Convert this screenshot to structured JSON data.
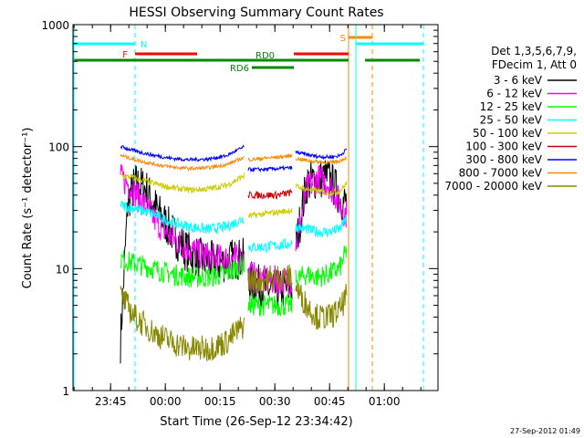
{
  "chart_data": {
    "type": "line",
    "title": "HESSI Observing Summary Count Rates",
    "xlabel": "Start Time (26-Sep-12 23:34:42)",
    "ylabel": "Count Rate (s⁻¹ detector⁻¹)",
    "yscale": "log",
    "ylim": [
      1,
      1000
    ],
    "xlim_minutes_after_start": [
      0,
      100
    ],
    "x_tick_labels": [
      "23:45",
      "00:00",
      "00:15",
      "00:30",
      "00:45",
      "01:00"
    ],
    "x_tick_minutes": [
      10.3,
      25.3,
      40.3,
      55.3,
      70.3,
      85.3
    ],
    "y_tick_labels": [
      "1",
      "10",
      "100",
      "1000"
    ],
    "y_tick_values": [
      1,
      10,
      100,
      1000
    ],
    "legend_header": [
      "Det 1,3,5,6,7,9,",
      "FDecim 1, Att 0"
    ],
    "legend_position": "right",
    "timestamp": "27-Sep-2012 01:49",
    "segments": [
      [
        13,
        47.5
      ],
      [
        48,
        60.5
      ],
      [
        61,
        75.5
      ]
    ],
    "series": [
      {
        "name": "3 - 6 keV",
        "color": "#000000",
        "points": [
          [
            13,
            2.5
          ],
          [
            15,
            35
          ],
          [
            17,
            50
          ],
          [
            20,
            45
          ],
          [
            23,
            30
          ],
          [
            27,
            20
          ],
          [
            31,
            14
          ],
          [
            35,
            12
          ],
          [
            40,
            11
          ],
          [
            44,
            12
          ],
          [
            47,
            12
          ],
          [
            48,
            8
          ],
          [
            52,
            7
          ],
          [
            56,
            6.5
          ],
          [
            60,
            7
          ],
          [
            61,
            15
          ],
          [
            64,
            50
          ],
          [
            67,
            55
          ],
          [
            70,
            55
          ],
          [
            72,
            45
          ],
          [
            74,
            35
          ],
          [
            75,
            35
          ]
        ]
      },
      {
        "name": "6 - 12 keV",
        "color": "#ff00ff",
        "points": [
          [
            13,
            55
          ],
          [
            15,
            50
          ],
          [
            17,
            42
          ],
          [
            20,
            32
          ],
          [
            23,
            24
          ],
          [
            27,
            18
          ],
          [
            31,
            15
          ],
          [
            35,
            13
          ],
          [
            40,
            12
          ],
          [
            44,
            12
          ],
          [
            47,
            12
          ],
          [
            48,
            9
          ],
          [
            52,
            8
          ],
          [
            56,
            8
          ],
          [
            60,
            8
          ],
          [
            61,
            15
          ],
          [
            64,
            45
          ],
          [
            67,
            55
          ],
          [
            70,
            50
          ],
          [
            72,
            40
          ],
          [
            74,
            30
          ],
          [
            75,
            28
          ]
        ]
      },
      {
        "name": "12 - 25 keV",
        "color": "#00ff00",
        "points": [
          [
            13,
            12
          ],
          [
            17,
            11
          ],
          [
            22,
            10
          ],
          [
            27,
            9
          ],
          [
            32,
            8.5
          ],
          [
            37,
            8.5
          ],
          [
            42,
            9
          ],
          [
            47,
            11
          ],
          [
            48,
            5
          ],
          [
            52,
            5
          ],
          [
            56,
            5
          ],
          [
            60,
            5
          ],
          [
            61,
            8
          ],
          [
            64,
            9
          ],
          [
            67,
            8.5
          ],
          [
            70,
            9
          ],
          [
            73,
            10
          ],
          [
            75,
            14
          ]
        ]
      },
      {
        "name": "25 - 50 keV",
        "color": "#00ffff",
        "points": [
          [
            13,
            33
          ],
          [
            17,
            31
          ],
          [
            22,
            28
          ],
          [
            27,
            24
          ],
          [
            32,
            22
          ],
          [
            37,
            21
          ],
          [
            42,
            22
          ],
          [
            47,
            26
          ],
          [
            48,
            15
          ],
          [
            52,
            15
          ],
          [
            56,
            15.5
          ],
          [
            60,
            16
          ],
          [
            61,
            22
          ],
          [
            64,
            21
          ],
          [
            67,
            20
          ],
          [
            70,
            20
          ],
          [
            73,
            21
          ],
          [
            75,
            26
          ]
        ]
      },
      {
        "name": "50 - 100 keV",
        "color": "#cccc00",
        "points": [
          [
            13,
            58
          ],
          [
            17,
            55
          ],
          [
            22,
            50
          ],
          [
            27,
            46
          ],
          [
            32,
            44
          ],
          [
            37,
            45
          ],
          [
            42,
            48
          ],
          [
            47,
            58
          ],
          [
            48,
            27
          ],
          [
            52,
            28
          ],
          [
            56,
            29
          ],
          [
            60,
            30
          ],
          [
            61,
            47
          ],
          [
            64,
            45
          ],
          [
            67,
            43
          ],
          [
            70,
            42
          ],
          [
            73,
            43
          ],
          [
            75,
            50
          ]
        ]
      },
      {
        "name": "100 - 300 keV",
        "color": "#cc0000",
        "points": [
          [
            48,
            40
          ],
          [
            52,
            40
          ],
          [
            56,
            40
          ],
          [
            60,
            42
          ]
        ]
      },
      {
        "name": "300 - 800 keV",
        "color": "#0000ff",
        "points": [
          [
            13,
            100
          ],
          [
            17,
            92
          ],
          [
            22,
            85
          ],
          [
            27,
            80
          ],
          [
            32,
            78
          ],
          [
            37,
            79
          ],
          [
            42,
            84
          ],
          [
            47,
            100
          ],
          [
            48,
            65
          ],
          [
            52,
            65
          ],
          [
            56,
            66
          ],
          [
            60,
            67
          ],
          [
            61,
            90
          ],
          [
            64,
            86
          ],
          [
            67,
            83
          ],
          [
            70,
            82
          ],
          [
            73,
            84
          ],
          [
            75,
            95
          ]
        ]
      },
      {
        "name": "800 - 7000 keV",
        "color": "#ff8800",
        "points": [
          [
            13,
            85
          ],
          [
            17,
            78
          ],
          [
            22,
            72
          ],
          [
            27,
            68
          ],
          [
            32,
            66
          ],
          [
            37,
            67
          ],
          [
            42,
            71
          ],
          [
            47,
            82
          ],
          [
            48,
            78
          ],
          [
            52,
            80
          ],
          [
            56,
            82
          ],
          [
            60,
            84
          ],
          [
            61,
            80
          ],
          [
            64,
            77
          ],
          [
            67,
            75
          ],
          [
            70,
            74
          ],
          [
            73,
            76
          ],
          [
            75,
            82
          ]
        ]
      },
      {
        "name": "7000 - 20000 keV",
        "color": "#888800",
        "points": [
          [
            13,
            6
          ],
          [
            17,
            4
          ],
          [
            22,
            3
          ],
          [
            27,
            2.5
          ],
          [
            32,
            2.2
          ],
          [
            37,
            2.2
          ],
          [
            42,
            2.5
          ],
          [
            47,
            3.5
          ],
          [
            48,
            8
          ],
          [
            52,
            8
          ],
          [
            56,
            8.5
          ],
          [
            60,
            8.5
          ],
          [
            61,
            7
          ],
          [
            64,
            5
          ],
          [
            67,
            4
          ],
          [
            70,
            4
          ],
          [
            73,
            4.5
          ],
          [
            75,
            6
          ]
        ]
      }
    ],
    "status_bars": [
      {
        "label": "N",
        "color": "#00ffff",
        "intervals": [
          [
            0,
            17
          ]
        ],
        "dashed_marker_min": 17
      },
      {
        "label": "F",
        "color": "#ff0000",
        "intervals": [
          [
            17,
            34
          ]
        ]
      },
      {
        "label": "S",
        "color": "#ff8800",
        "intervals": [
          [
            75.5,
            82
          ]
        ],
        "solid_marker_min": 75.5,
        "dashed_marker_min": 82
      },
      {
        "label": "",
        "color": "#00ffff",
        "intervals": [
          [
            77.5,
            96
          ]
        ],
        "solid_marker_min": 77.5,
        "dashed_marker_min": 96
      },
      {
        "label": "",
        "color": "#ff0000",
        "intervals": [
          [
            60.5,
            75.5
          ]
        ]
      },
      {
        "label": "RD0",
        "color": "#008800",
        "intervals": [
          [
            0,
            49
          ],
          [
            49,
            75.5
          ],
          [
            80,
            95
          ]
        ]
      },
      {
        "label": "RD6",
        "color": "#008800",
        "intervals": [
          [
            49,
            60.5
          ]
        ]
      }
    ]
  }
}
